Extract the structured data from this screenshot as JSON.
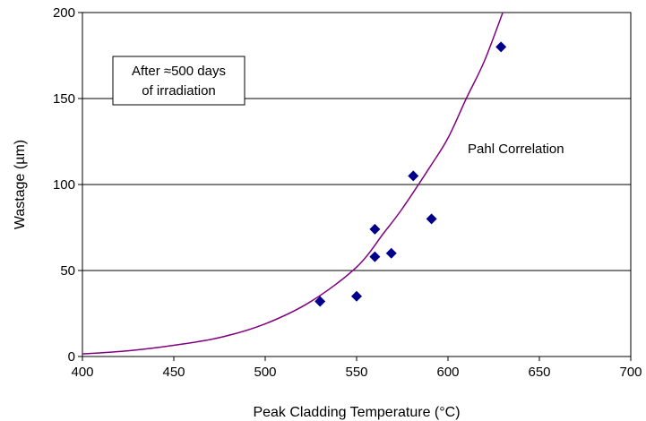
{
  "chart_data": {
    "type": "scatter",
    "xlabel": "Peak Cladding Temperature (°C)",
    "ylabel": "Wastage (µm)",
    "xlim": [
      400,
      700
    ],
    "ylim": [
      0,
      200
    ],
    "x_ticks": [
      400,
      450,
      500,
      550,
      600,
      650,
      700
    ],
    "y_ticks": [
      0,
      50,
      100,
      150,
      200
    ],
    "grid": "horizontal",
    "marker_color": "#00008b",
    "curve_color": "#800080",
    "series": [
      {
        "type": "scatter",
        "x": [
          530,
          550,
          560,
          560,
          569,
          581,
          591,
          629
        ],
        "y": [
          32,
          35,
          58,
          74,
          60,
          105,
          80,
          180
        ]
      },
      {
        "type": "line",
        "name": "Pahl Correlation",
        "x": [
          400,
          425,
          450,
          475,
          500,
          525,
          550,
          565,
          575,
          590,
          600,
          610,
          620,
          631
        ],
        "y": [
          1.5,
          3.3,
          6.5,
          11,
          19,
          32,
          52,
          72,
          86,
          110,
          127,
          150,
          172,
          203
        ]
      }
    ],
    "annotations": [
      {
        "lines": [
          "After ≈500 days",
          "of irradiation"
        ]
      },
      {
        "text": "Pahl Correlation"
      }
    ]
  }
}
